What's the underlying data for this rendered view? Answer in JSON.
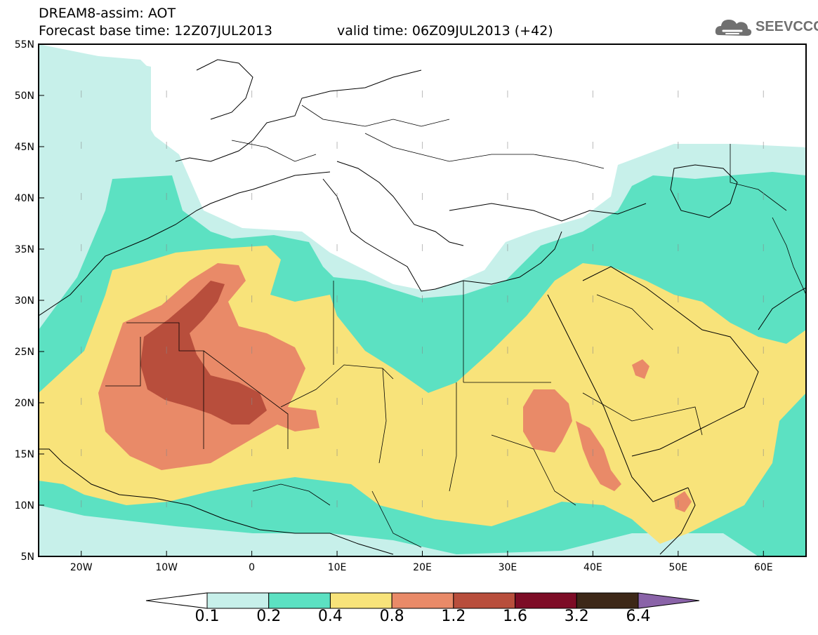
{
  "title": {
    "line1": "DREAM8-assim: AOT",
    "line2": "Forecast base time: 12Z07JUL2013",
    "valid": "valid time: 06Z09JUL2013 (+42)"
  },
  "logo": {
    "text": "SEEVCCC",
    "icon": "cloud-icon"
  },
  "axes": {
    "lat_labels": [
      "55N",
      "50N",
      "45N",
      "40N",
      "35N",
      "30N",
      "25N",
      "20N",
      "15N",
      "10N",
      "5N"
    ],
    "lon_labels": [
      "20W",
      "10W",
      "0",
      "10E",
      "20E",
      "30E",
      "40E",
      "50E",
      "60E"
    ]
  },
  "colorbar": {
    "labels": [
      "0.1",
      "0.2",
      "0.4",
      "0.8",
      "1.2",
      "1.6",
      "3.2",
      "6.4"
    ],
    "colors": [
      "#ffffff",
      "#c7f0ea",
      "#5ce1c2",
      "#f8e37a",
      "#e98a68",
      "#b84e3c",
      "#7d0c26",
      "#3d2818",
      "#8a63a8"
    ]
  },
  "map": {
    "extent": {
      "lon": [
        -25,
        65
      ],
      "lat": [
        5,
        55
      ]
    },
    "field_colors": {
      "c01": "#c7f0ea",
      "c02": "#5ce1c2",
      "c04": "#f8e37a",
      "c08": "#e98a68",
      "c12": "#b84e3c"
    }
  }
}
